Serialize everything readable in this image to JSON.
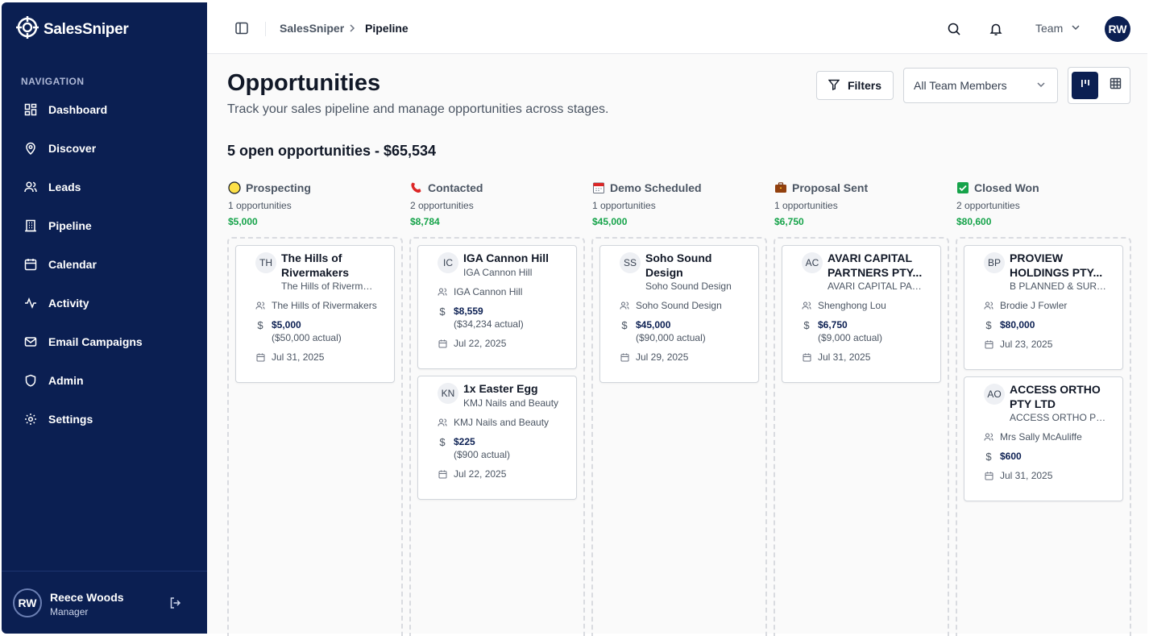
{
  "app": {
    "name": "SalesSniper"
  },
  "sidebar": {
    "heading": "NAVIGATION",
    "items": [
      {
        "label": "Dashboard",
        "icon": "dashboard-icon"
      },
      {
        "label": "Discover",
        "icon": "map-pin-icon"
      },
      {
        "label": "Leads",
        "icon": "users-icon"
      },
      {
        "label": "Pipeline",
        "icon": "building-icon"
      },
      {
        "label": "Calendar",
        "icon": "calendar-icon"
      },
      {
        "label": "Activity",
        "icon": "activity-icon"
      },
      {
        "label": "Email Campaigns",
        "icon": "mail-icon"
      },
      {
        "label": "Admin",
        "icon": "shield-icon"
      },
      {
        "label": "Settings",
        "icon": "gear-icon"
      }
    ],
    "user": {
      "initials": "RW",
      "name": "Reece Woods",
      "role": "Manager"
    }
  },
  "header": {
    "breadcrumb": [
      "SalesSniper",
      "Pipeline"
    ],
    "team_label": "Team",
    "avatar_initials": "RW"
  },
  "page": {
    "title": "Opportunities",
    "subtitle": "Track your sales pipeline and manage opportunities across stages.",
    "filters_label": "Filters",
    "member_select": "All Team Members",
    "summary": "5 open opportunities - $65,534"
  },
  "columns": [
    {
      "name": "Prospecting",
      "icon": "yellow-circle-icon",
      "count": "1 opportunities",
      "total": "$5,000",
      "cards": [
        {
          "initials": "TH",
          "title": "The Hills of Rivermakers",
          "company": "The Hills of Rivermakers",
          "contact": "The Hills of Rivermakers",
          "value": "$5,000",
          "actual": "($50,000 actual)",
          "date": "Jul 31, 2025"
        }
      ]
    },
    {
      "name": "Contacted",
      "icon": "telephone-icon",
      "count": "2 opportunities",
      "total": "$8,784",
      "cards": [
        {
          "initials": "IC",
          "title": "IGA Cannon Hill",
          "company": "IGA Cannon Hill",
          "contact": "IGA Cannon Hill",
          "value": "$8,559",
          "actual": "($34,234 actual)",
          "date": "Jul 22, 2025"
        },
        {
          "initials": "KN",
          "title": "1x Easter Egg",
          "company": "KMJ Nails and Beauty",
          "contact": "KMJ Nails and Beauty",
          "value": "$225",
          "actual": "($900 actual)",
          "date": "Jul 22, 2025"
        }
      ]
    },
    {
      "name": "Demo Scheduled",
      "icon": "calendar-emoji-icon",
      "count": "1 opportunities",
      "total": "$45,000",
      "cards": [
        {
          "initials": "SS",
          "title": "Soho Sound Design",
          "company": "Soho Sound Design",
          "contact": "Soho Sound Design",
          "value": "$45,000",
          "actual": "($90,000 actual)",
          "date": "Jul 29, 2025"
        }
      ]
    },
    {
      "name": "Proposal Sent",
      "icon": "briefcase-icon",
      "count": "1 opportunities",
      "total": "$6,750",
      "cards": [
        {
          "initials": "AC",
          "title": "AVARI CAPITAL PARTNERS PTY...",
          "company": "AVARI CAPITAL PARTNERS",
          "contact": "Shenghong Lou",
          "value": "$6,750",
          "actual": "($9,000 actual)",
          "date": "Jul 31, 2025"
        }
      ]
    },
    {
      "name": "Closed Won",
      "icon": "check-box-icon",
      "count": "2 opportunities",
      "total": "$80,600",
      "cards": [
        {
          "initials": "BP",
          "title": "PROVIEW HOLDINGS PTY...",
          "company": "B PLANNED & SURVEYING",
          "contact": "Brodie J Fowler",
          "value": "$80,000",
          "actual": "",
          "date": "Jul 23, 2025"
        },
        {
          "initials": "AO",
          "title": "ACCESS ORTHO PTY LTD",
          "company": "ACCESS ORTHO PTY LTD",
          "contact": "Mrs Sally McAuliffe",
          "value": "$600",
          "actual": "",
          "date": "Jul 31, 2025"
        }
      ]
    }
  ]
}
